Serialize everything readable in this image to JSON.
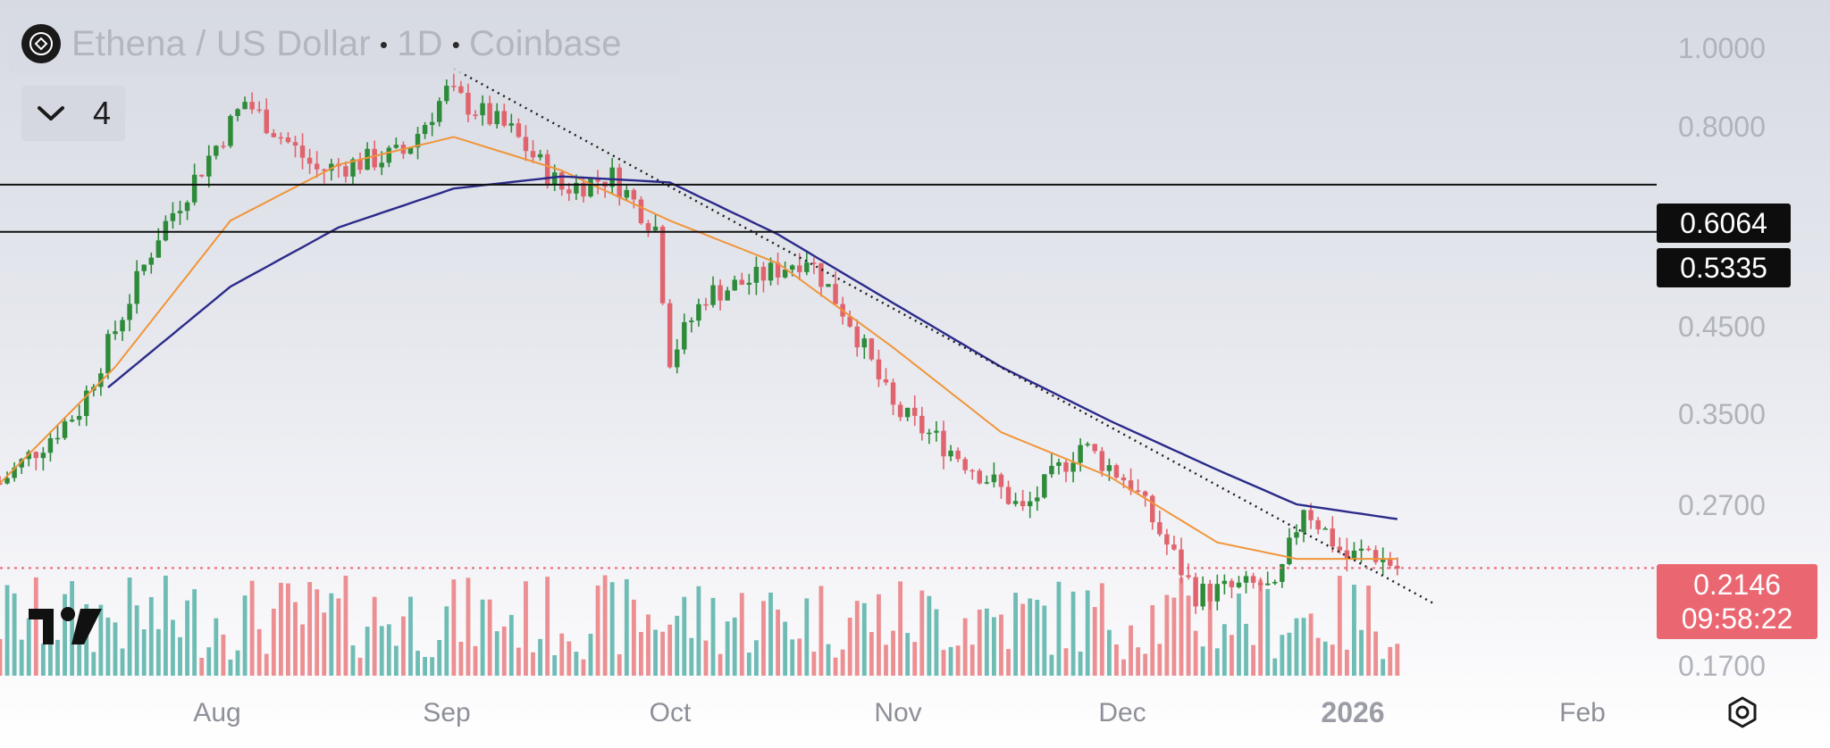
{
  "header": {
    "symbol": "Ethena / US Dollar",
    "interval": "1D",
    "exchange": "Coinbase",
    "coin_icon": "ethena-logo-icon",
    "indicators_count": "4"
  },
  "price_axis": {
    "labels": [
      "1.0000",
      "0.8000",
      "0.4500",
      "0.3500",
      "0.2700",
      "0.1700"
    ]
  },
  "levels": [
    {
      "label": "0.6064",
      "value": 0.6064
    },
    {
      "label": "0.5335",
      "value": 0.5335
    }
  ],
  "current": {
    "price": "0.2146",
    "countdown": "09:58:22",
    "value": 0.2146,
    "color": "#ea6772"
  },
  "time_axis": {
    "labels": [
      "Aug",
      "Sep",
      "Oct",
      "Nov",
      "Dec",
      "2026",
      "Feb"
    ]
  },
  "colors": {
    "up": "#2e8b3a",
    "down": "#e0646d",
    "volume_up": "#6fbcb5",
    "volume_down": "#ec8f92",
    "ma_fast": "#f0953a",
    "ma_slow": "#2b2a8a"
  },
  "chart_data": {
    "type": "candlestick",
    "y_scale": "log",
    "ylim": [
      0.165,
      1.0
    ],
    "x_axis_range": [
      "2025-07-09",
      "2026-02-24"
    ],
    "series": [
      {
        "name": "",
        "kind": "candles",
        "x": [
          "2025-07-09",
          "2025-07-20",
          "2025-07-31",
          "2025-08-12",
          "2025-08-22",
          "2025-09-03",
          "2025-09-09",
          "2025-09-18",
          "2025-09-25",
          "2025-10-02",
          "2025-10-08",
          "2025-10-10",
          "2025-10-15",
          "2025-10-22",
          "2025-10-29",
          "2025-11-04",
          "2025-11-10",
          "2025-11-17",
          "2025-11-24",
          "2025-11-28",
          "2025-12-06",
          "2025-12-13",
          "2025-12-22",
          "2025-12-31",
          "2026-01-02",
          "2026-01-06",
          "2026-01-12",
          "2026-01-15",
          "2026-01-19"
        ],
        "close": [
          0.27,
          0.33,
          0.53,
          0.76,
          0.63,
          0.66,
          0.78,
          0.7,
          0.6,
          0.62,
          0.54,
          0.38,
          0.45,
          0.47,
          0.5,
          0.42,
          0.33,
          0.3,
          0.27,
          0.25,
          0.3,
          0.27,
          0.2,
          0.205,
          0.2,
          0.255,
          0.22,
          0.225,
          0.2146
        ]
      },
      {
        "name": "",
        "kind": "moving-average",
        "x": [
          "2025-07-09",
          "2025-07-25",
          "2025-08-10",
          "2025-08-25",
          "2025-09-10",
          "2025-09-25",
          "2025-10-10",
          "2025-10-25",
          "2025-11-10",
          "2025-11-25",
          "2025-12-10",
          "2025-12-25",
          "2026-01-05",
          "2026-01-19"
        ],
        "values": [
          0.27,
          0.37,
          0.55,
          0.64,
          0.69,
          0.63,
          0.55,
          0.49,
          0.39,
          0.31,
          0.275,
          0.23,
          0.22,
          0.22
        ]
      },
      {
        "name": "",
        "kind": "moving-average",
        "x": [
          "2025-07-24",
          "2025-08-10",
          "2025-08-25",
          "2025-09-10",
          "2025-09-25",
          "2025-10-10",
          "2025-10-25",
          "2025-11-10",
          "2025-11-25",
          "2025-12-10",
          "2025-12-25",
          "2026-01-05",
          "2026-01-19"
        ],
        "values": [
          0.35,
          0.46,
          0.54,
          0.6,
          0.62,
          0.61,
          0.53,
          0.44,
          0.37,
          0.32,
          0.28,
          0.255,
          0.245
        ]
      },
      {
        "name": "",
        "kind": "trendline",
        "x": [
          "2025-09-10",
          "2026-01-24"
        ],
        "values": [
          0.83,
          0.195
        ]
      }
    ]
  }
}
